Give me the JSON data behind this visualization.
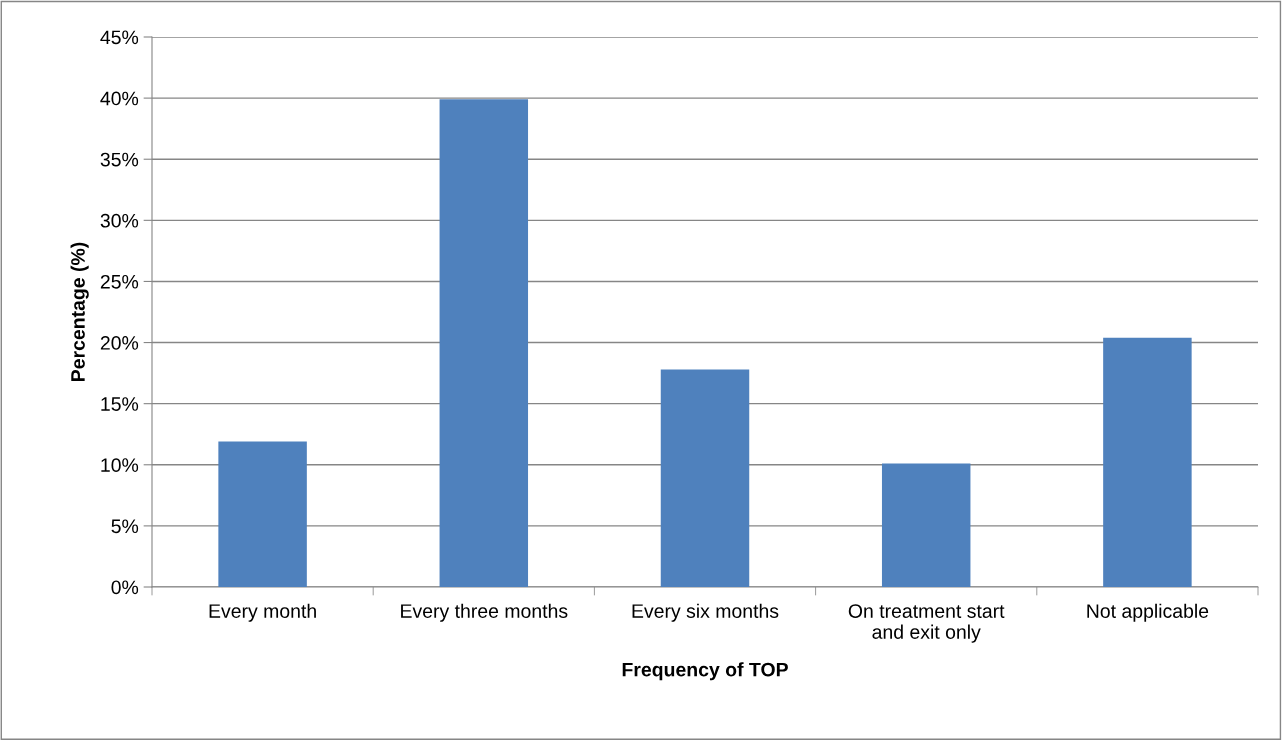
{
  "chart_data": {
    "type": "bar",
    "categories": [
      "Every month",
      "Every three months",
      "Every six months",
      "On treatment start\nand exit only",
      "Not applicable"
    ],
    "values": [
      11.9,
      39.9,
      17.8,
      10.1,
      20.4
    ],
    "color": "#4f81bd",
    "xlabel": "Frequency of TOP",
    "ylabel": "Percentage (%)",
    "ylim": [
      0,
      45
    ],
    "yticks": [
      {
        "value": 0,
        "label": "0%"
      },
      {
        "value": 5,
        "label": "5%"
      },
      {
        "value": 10,
        "label": "10%"
      },
      {
        "value": 15,
        "label": "15%"
      },
      {
        "value": 20,
        "label": "20%"
      },
      {
        "value": 25,
        "label": "25%"
      },
      {
        "value": 30,
        "label": "30%"
      },
      {
        "value": 35,
        "label": "35%"
      },
      {
        "value": 40,
        "label": "40%"
      },
      {
        "value": 45,
        "label": "45%"
      }
    ],
    "grid": "y",
    "legend": false
  }
}
